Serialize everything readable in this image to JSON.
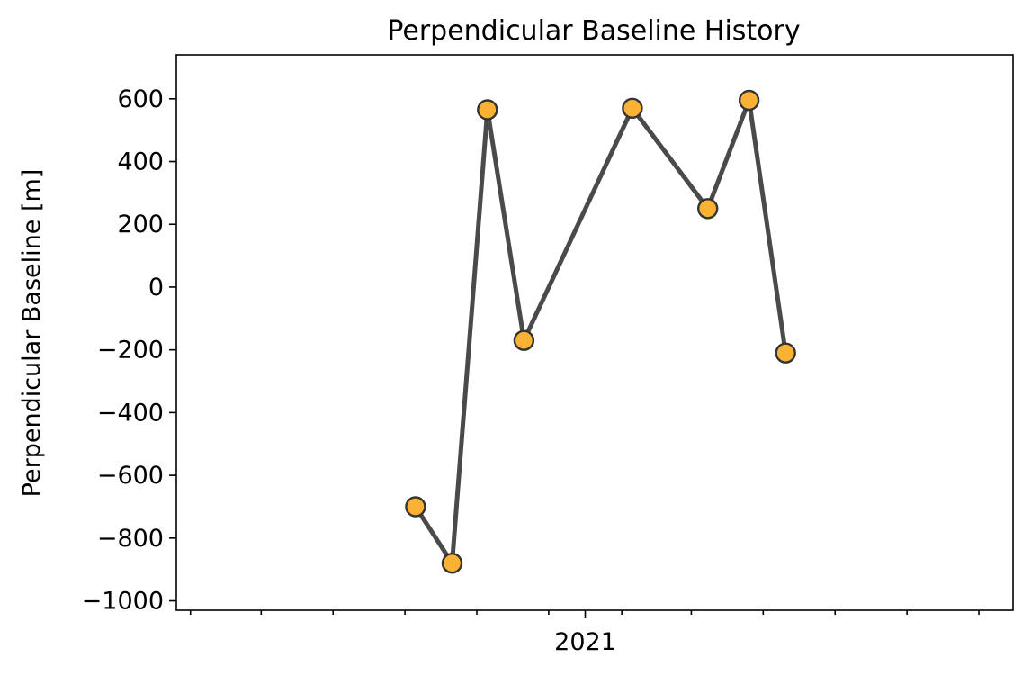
{
  "chart_data": {
    "type": "line",
    "title": "Perpendicular Baseline History",
    "xlabel": "",
    "ylabel": "Perpendicular Baseline [m]",
    "x_tick_major_labels": [
      "2021"
    ],
    "x_tick_major_values": [
      "2021-01-01"
    ],
    "x_tick_minor_values": [
      "2020-02-01",
      "2020-04-01",
      "2020-06-01",
      "2020-08-01",
      "2020-10-01",
      "2020-12-01",
      "2021-02-01",
      "2021-04-01",
      "2021-06-01",
      "2021-08-01",
      "2021-10-01",
      "2021-12-01"
    ],
    "xlim": [
      "2020-01-20",
      "2021-12-30"
    ],
    "ylim": [
      -1030,
      740
    ],
    "y_ticks": [
      -1000,
      -800,
      -600,
      -400,
      -200,
      0,
      200,
      400,
      600
    ],
    "y_tick_labels": [
      "−1000",
      "−800",
      "−600",
      "−400",
      "−200",
      "0",
      "200",
      "400",
      "600"
    ],
    "grid": false,
    "series": [
      {
        "x": [
          "2020-08-10",
          "2020-09-10",
          "2020-10-10",
          "2020-11-10",
          "2021-02-10",
          "2021-04-15",
          "2021-05-20",
          "2021-06-20"
        ],
        "values": [
          -700,
          -880,
          565,
          -170,
          570,
          250,
          595,
          -210
        ],
        "line_color": "#4a4a4a",
        "marker_color": "#f9b233",
        "marker_edge_color": "#333333"
      }
    ]
  }
}
